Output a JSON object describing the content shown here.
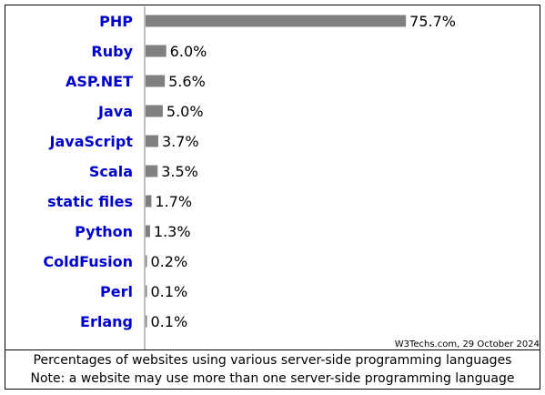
{
  "chart_data": {
    "type": "bar",
    "orientation": "horizontal",
    "categories": [
      "PHP",
      "Ruby",
      "ASP.NET",
      "Java",
      "JavaScript",
      "Scala",
      "static files",
      "Python",
      "ColdFusion",
      "Perl",
      "Erlang"
    ],
    "values": [
      75.7,
      6.0,
      5.6,
      5.0,
      3.7,
      3.5,
      1.7,
      1.3,
      0.2,
      0.1,
      0.1
    ],
    "value_labels": [
      "75.7%",
      "6.0%",
      "5.6%",
      "5.0%",
      "3.7%",
      "3.5%",
      "1.7%",
      "1.3%",
      "0.2%",
      "0.1%",
      "0.1%"
    ],
    "xlim": [
      0,
      100
    ],
    "grid": false,
    "source": "W3Techs.com, 29 October 2024",
    "caption_lines": [
      "Percentages of websites using various server-side programming languages",
      "Note: a website may use more than one server-side programming language"
    ],
    "colors": {
      "bar": "#808080",
      "category_label": "#0000cc",
      "axis": "#808080",
      "text": "#000000"
    }
  }
}
